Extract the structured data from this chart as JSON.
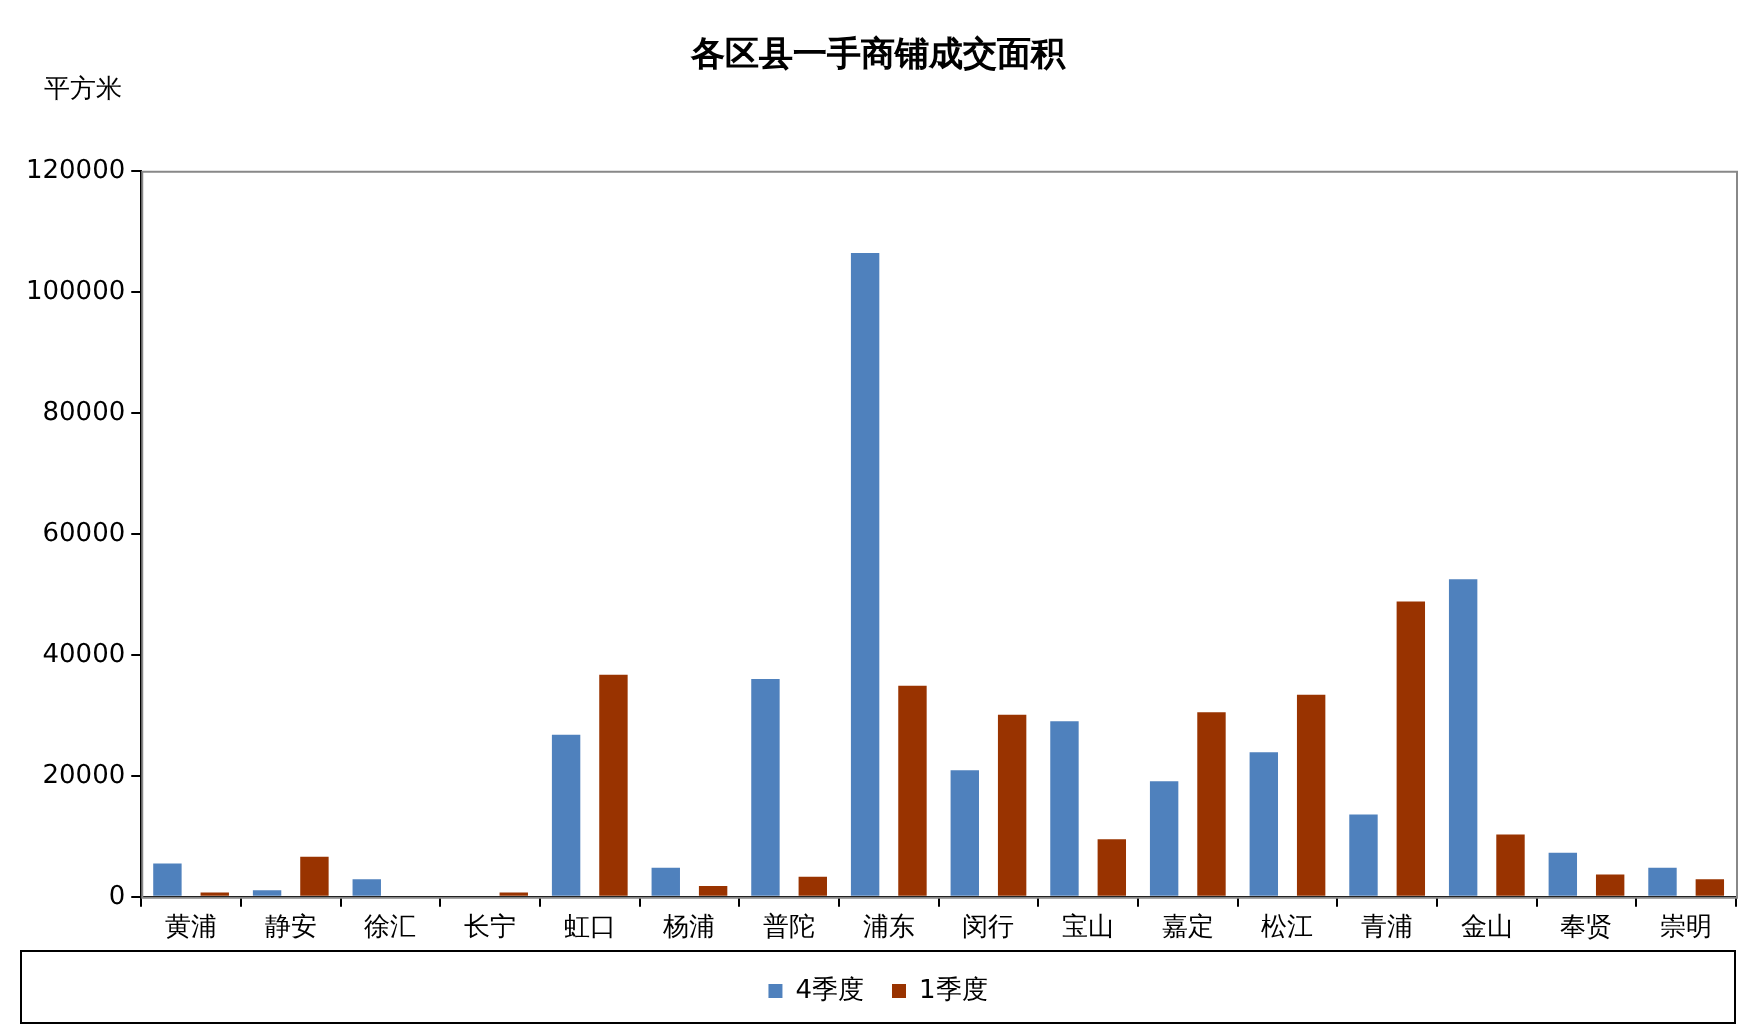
{
  "chart_data": {
    "type": "bar",
    "title": "各区县一手商铺成交面积",
    "ylabel": "平方米",
    "categories": [
      "黄浦",
      "静安",
      "徐汇",
      "长宁",
      "虹口",
      "杨浦",
      "普陀",
      "浦东",
      "闵行",
      "宝山",
      "嘉定",
      "松江",
      "青浦",
      "金山",
      "奉贤",
      "崇明"
    ],
    "series": [
      {
        "name": "4季度",
        "color": "#4f81bd",
        "values": [
          5500,
          1100,
          2900,
          0,
          26800,
          4800,
          36000,
          106400,
          20900,
          29000,
          19100,
          23900,
          13600,
          52500,
          7300,
          4800
        ]
      },
      {
        "name": "1季度",
        "color": "#993300",
        "values": [
          700,
          6600,
          0,
          700,
          36700,
          1800,
          3300,
          34900,
          30100,
          9500,
          30500,
          33400,
          48800,
          10300,
          3700,
          2900
        ]
      }
    ],
    "ylim": [
      0,
      120000
    ],
    "yticks": [
      0,
      20000,
      40000,
      60000,
      80000,
      100000,
      120000
    ],
    "grid": false,
    "legend": "bottom"
  }
}
